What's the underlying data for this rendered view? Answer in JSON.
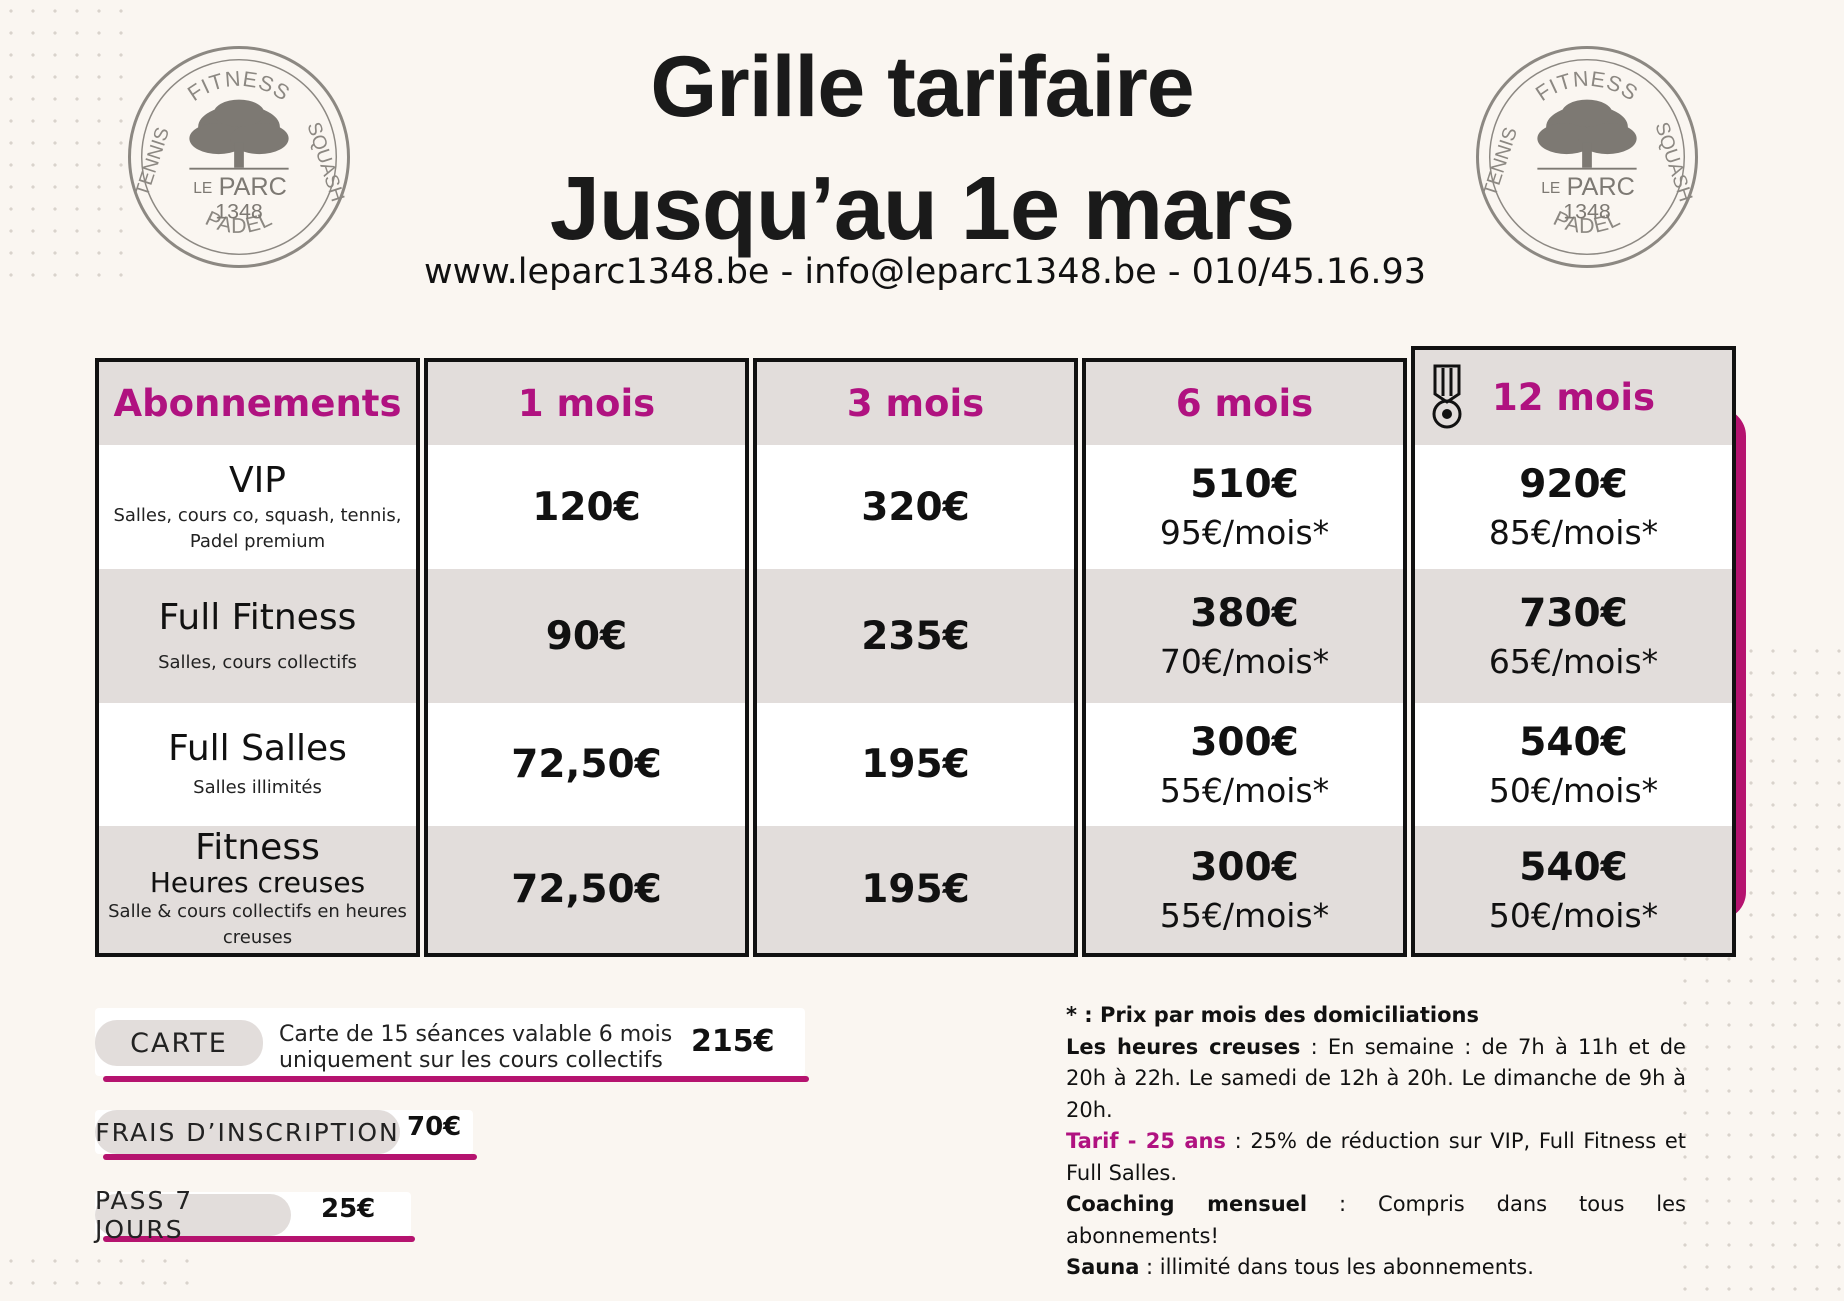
{
  "header": {
    "title_line1": "Grille tarifaire",
    "title_line2": "Jusqu’au 1e mars",
    "contact": "www.leparc1348.be - info@leparc1348.be - 010/45.16.93"
  },
  "logo": {
    "top": "FITNESS",
    "left": "TENNIS",
    "right": "SQUASH",
    "bottom": "PADEL",
    "brand_prefix": "LE",
    "brand_name": "PARC",
    "brand_number": "1348"
  },
  "table": {
    "headers": [
      "Abonnements",
      "1 mois",
      "3 mois",
      "6 mois",
      "12 mois"
    ],
    "highlight_icon": "medal-icon",
    "rows": [
      {
        "name": "VIP",
        "name_mid": "",
        "desc": "Salles, cours co, squash, tennis, Padel premium",
        "m1": "120€",
        "m3": "320€",
        "m6": "510€",
        "m6_monthly": "95€/mois*",
        "m12": "920€",
        "m12_monthly": "85€/mois*"
      },
      {
        "name": "Full Fitness",
        "name_mid": "",
        "desc": "Salles, cours collectifs",
        "m1": "90€",
        "m3": "235€",
        "m6": "380€",
        "m6_monthly": "70€/mois*",
        "m12": "730€",
        "m12_monthly": "65€/mois*"
      },
      {
        "name": "Full Salles",
        "name_mid": "",
        "desc": "Salles illimités",
        "m1": "72,50€",
        "m3": "195€",
        "m6": "300€",
        "m6_monthly": "55€/mois*",
        "m12": "540€",
        "m12_monthly": "50€/mois*"
      },
      {
        "name": "Fitness",
        "name_mid": "Heures creuses",
        "desc": "Salle & cours collectifs en heures creuses",
        "m1": "72,50€",
        "m3": "195€",
        "m6": "300€",
        "m6_monthly": "55€/mois*",
        "m12": "540€",
        "m12_monthly": "50€/mois*"
      }
    ]
  },
  "extras": {
    "carte_label": "CARTE",
    "carte_desc_line1": "Carte de 15 séances valable  6 mois",
    "carte_desc_line2": "uniquement sur les cours collectifs",
    "carte_price": "215€",
    "frais_label": "FRAIS D’INSCRIPTION",
    "frais_price": "70€",
    "pass_label": "PASS 7 JOURS",
    "pass_price": "25€"
  },
  "notes": {
    "n1_bold": "* : Prix par mois des domiciliations",
    "n2_bold": "Les heures creuses",
    "n2_text": " : En semaine : de 7h à 11h et de 20h à 22h. Le samedi de 12h à 20h. Le dimanche de 9h à 20h.",
    "n3_bold": "Tarif - 25 ans",
    "n3_text": " : 25% de réduction sur VIP, Full Fitness et Full Salles.",
    "n4_bold": "Coaching mensuel",
    "n4_text": " : Compris dans tous les abonnements!",
    "n5_bold": "Sauna",
    "n5_text": " : illimité dans tous les abonnements."
  },
  "colors": {
    "accent": "#b01280",
    "cell_gray": "#e2dddb",
    "background": "#faf6f1"
  }
}
